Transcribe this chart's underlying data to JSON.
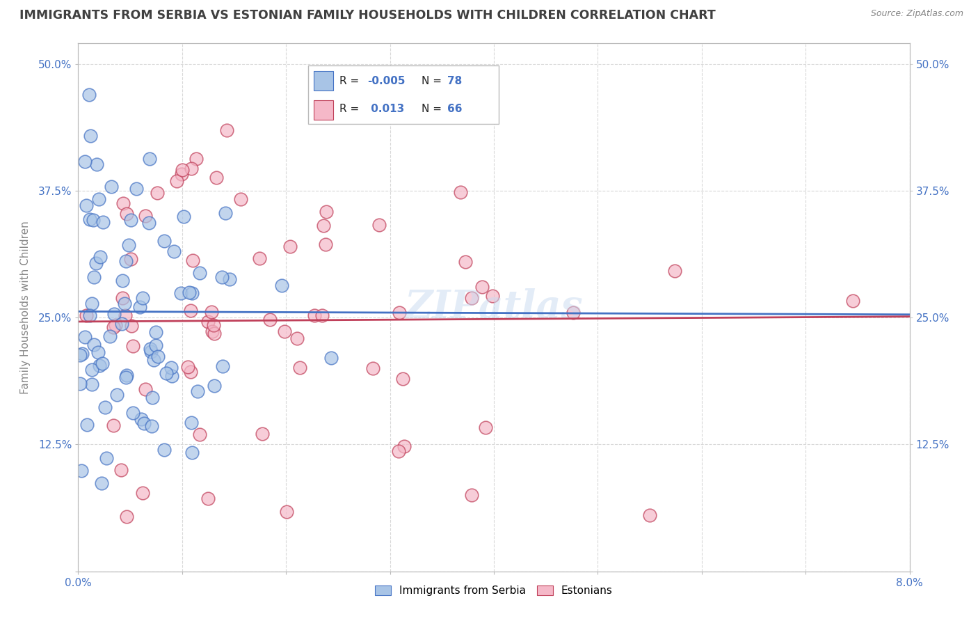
{
  "title": "IMMIGRANTS FROM SERBIA VS ESTONIAN FAMILY HOUSEHOLDS WITH CHILDREN CORRELATION CHART",
  "source_text": "Source: ZipAtlas.com",
  "ylabel": "Family Households with Children",
  "xlim": [
    0.0,
    0.08
  ],
  "ylim": [
    0.0,
    0.52
  ],
  "xticks": [
    0.0,
    0.01,
    0.02,
    0.03,
    0.04,
    0.05,
    0.06,
    0.07,
    0.08
  ],
  "xticklabels": [
    "0.0%",
    "",
    "",
    "",
    "",
    "",
    "",
    "",
    "8.0%"
  ],
  "yticks": [
    0.0,
    0.125,
    0.25,
    0.375,
    0.5
  ],
  "yticklabels_left": [
    "",
    "12.5%",
    "25.0%",
    "37.5%",
    "50.0%"
  ],
  "yticklabels_right": [
    "",
    "12.5%",
    "25.0%",
    "37.5%",
    "50.0%"
  ],
  "blue_color": "#a8c4e6",
  "pink_color": "#f5b8c8",
  "blue_line_color": "#4472c4",
  "pink_line_color": "#c0405a",
  "grid_color": "#d8d8d8",
  "title_color": "#404040",
  "axis_label_color": "#888888",
  "tick_color": "#4472c4",
  "watermark": "ZIPatlas",
  "seed": 12345
}
